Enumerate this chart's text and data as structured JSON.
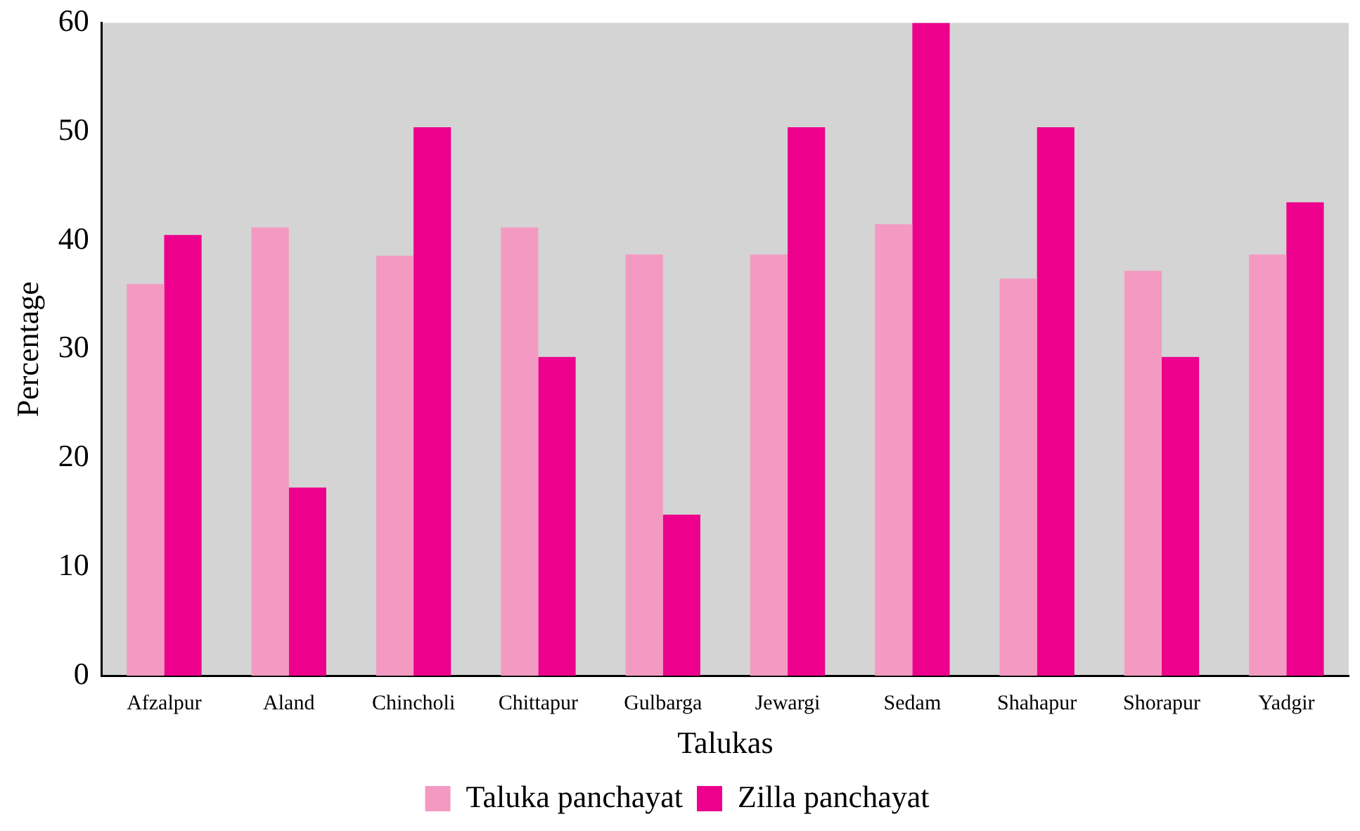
{
  "chart_data": {
    "type": "bar",
    "xlabel": "Talukas",
    "ylabel": "Percentage",
    "categories": [
      "Afzalpur",
      "Aland",
      "Chincholi",
      "Chittapur",
      "Gulbarga",
      "Jewargi",
      "Sedam",
      "Shahapur",
      "Shorapur",
      "Yadgir"
    ],
    "series": [
      {
        "name": "Taluka panchayat",
        "color": "#f49ac2",
        "values": [
          36,
          41.2,
          38.6,
          41.2,
          38.7,
          38.7,
          41.5,
          36.5,
          37.2,
          38.7
        ]
      },
      {
        "name": "Zilla panchayat",
        "color": "#ec008c",
        "values": [
          40.5,
          17.3,
          50.4,
          29.3,
          14.8,
          50.4,
          60,
          50.4,
          29.3,
          43.5
        ]
      }
    ],
    "ylim": [
      0,
      60
    ],
    "yticks": [
      0,
      10,
      20,
      30,
      40,
      50,
      60
    ],
    "grid": false,
    "legend": "bottom"
  }
}
